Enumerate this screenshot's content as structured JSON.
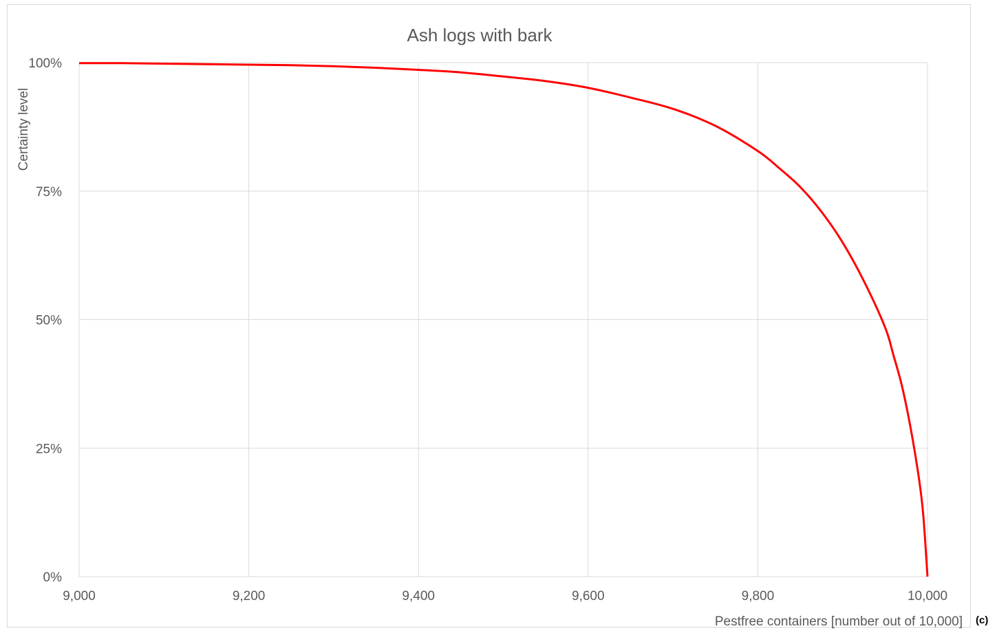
{
  "chart_data": {
    "type": "line",
    "title": "Ash logs with bark",
    "xlabel": "Pestfree containers [number out of 10,000]",
    "ylabel": "Certainty level",
    "xlim": [
      9000,
      10000
    ],
    "ylim": [
      0,
      1
    ],
    "x_ticks": [
      9000,
      9200,
      9400,
      9600,
      9800,
      10000
    ],
    "x_tick_labels": [
      "9,000",
      "9,200",
      "9,400",
      "9,600",
      "9,800",
      "10,000"
    ],
    "y_ticks": [
      0,
      0.25,
      0.5,
      0.75,
      1
    ],
    "y_tick_labels": [
      "0%",
      "25%",
      "50%",
      "75%",
      "100%"
    ],
    "grid": true,
    "legend": "none",
    "series": [
      {
        "color": "#ff0000",
        "x": [
          9000,
          9050,
          9100,
          9150,
          9200,
          9250,
          9300,
          9350,
          9400,
          9450,
          9500,
          9550,
          9600,
          9650,
          9700,
          9750,
          9800,
          9825,
          9850,
          9875,
          9900,
          9925,
          9950,
          9960,
          9970,
          9980,
          9990,
          9995,
          10000
        ],
        "y": [
          0.999,
          0.999,
          0.998,
          0.997,
          0.996,
          0.995,
          0.993,
          0.99,
          0.986,
          0.981,
          0.973,
          0.964,
          0.951,
          0.932,
          0.91,
          0.877,
          0.828,
          0.795,
          0.758,
          0.71,
          0.65,
          0.575,
          0.485,
          0.43,
          0.37,
          0.29,
          0.19,
          0.12,
          0.0
        ]
      }
    ]
  },
  "panel_label": "(c)"
}
